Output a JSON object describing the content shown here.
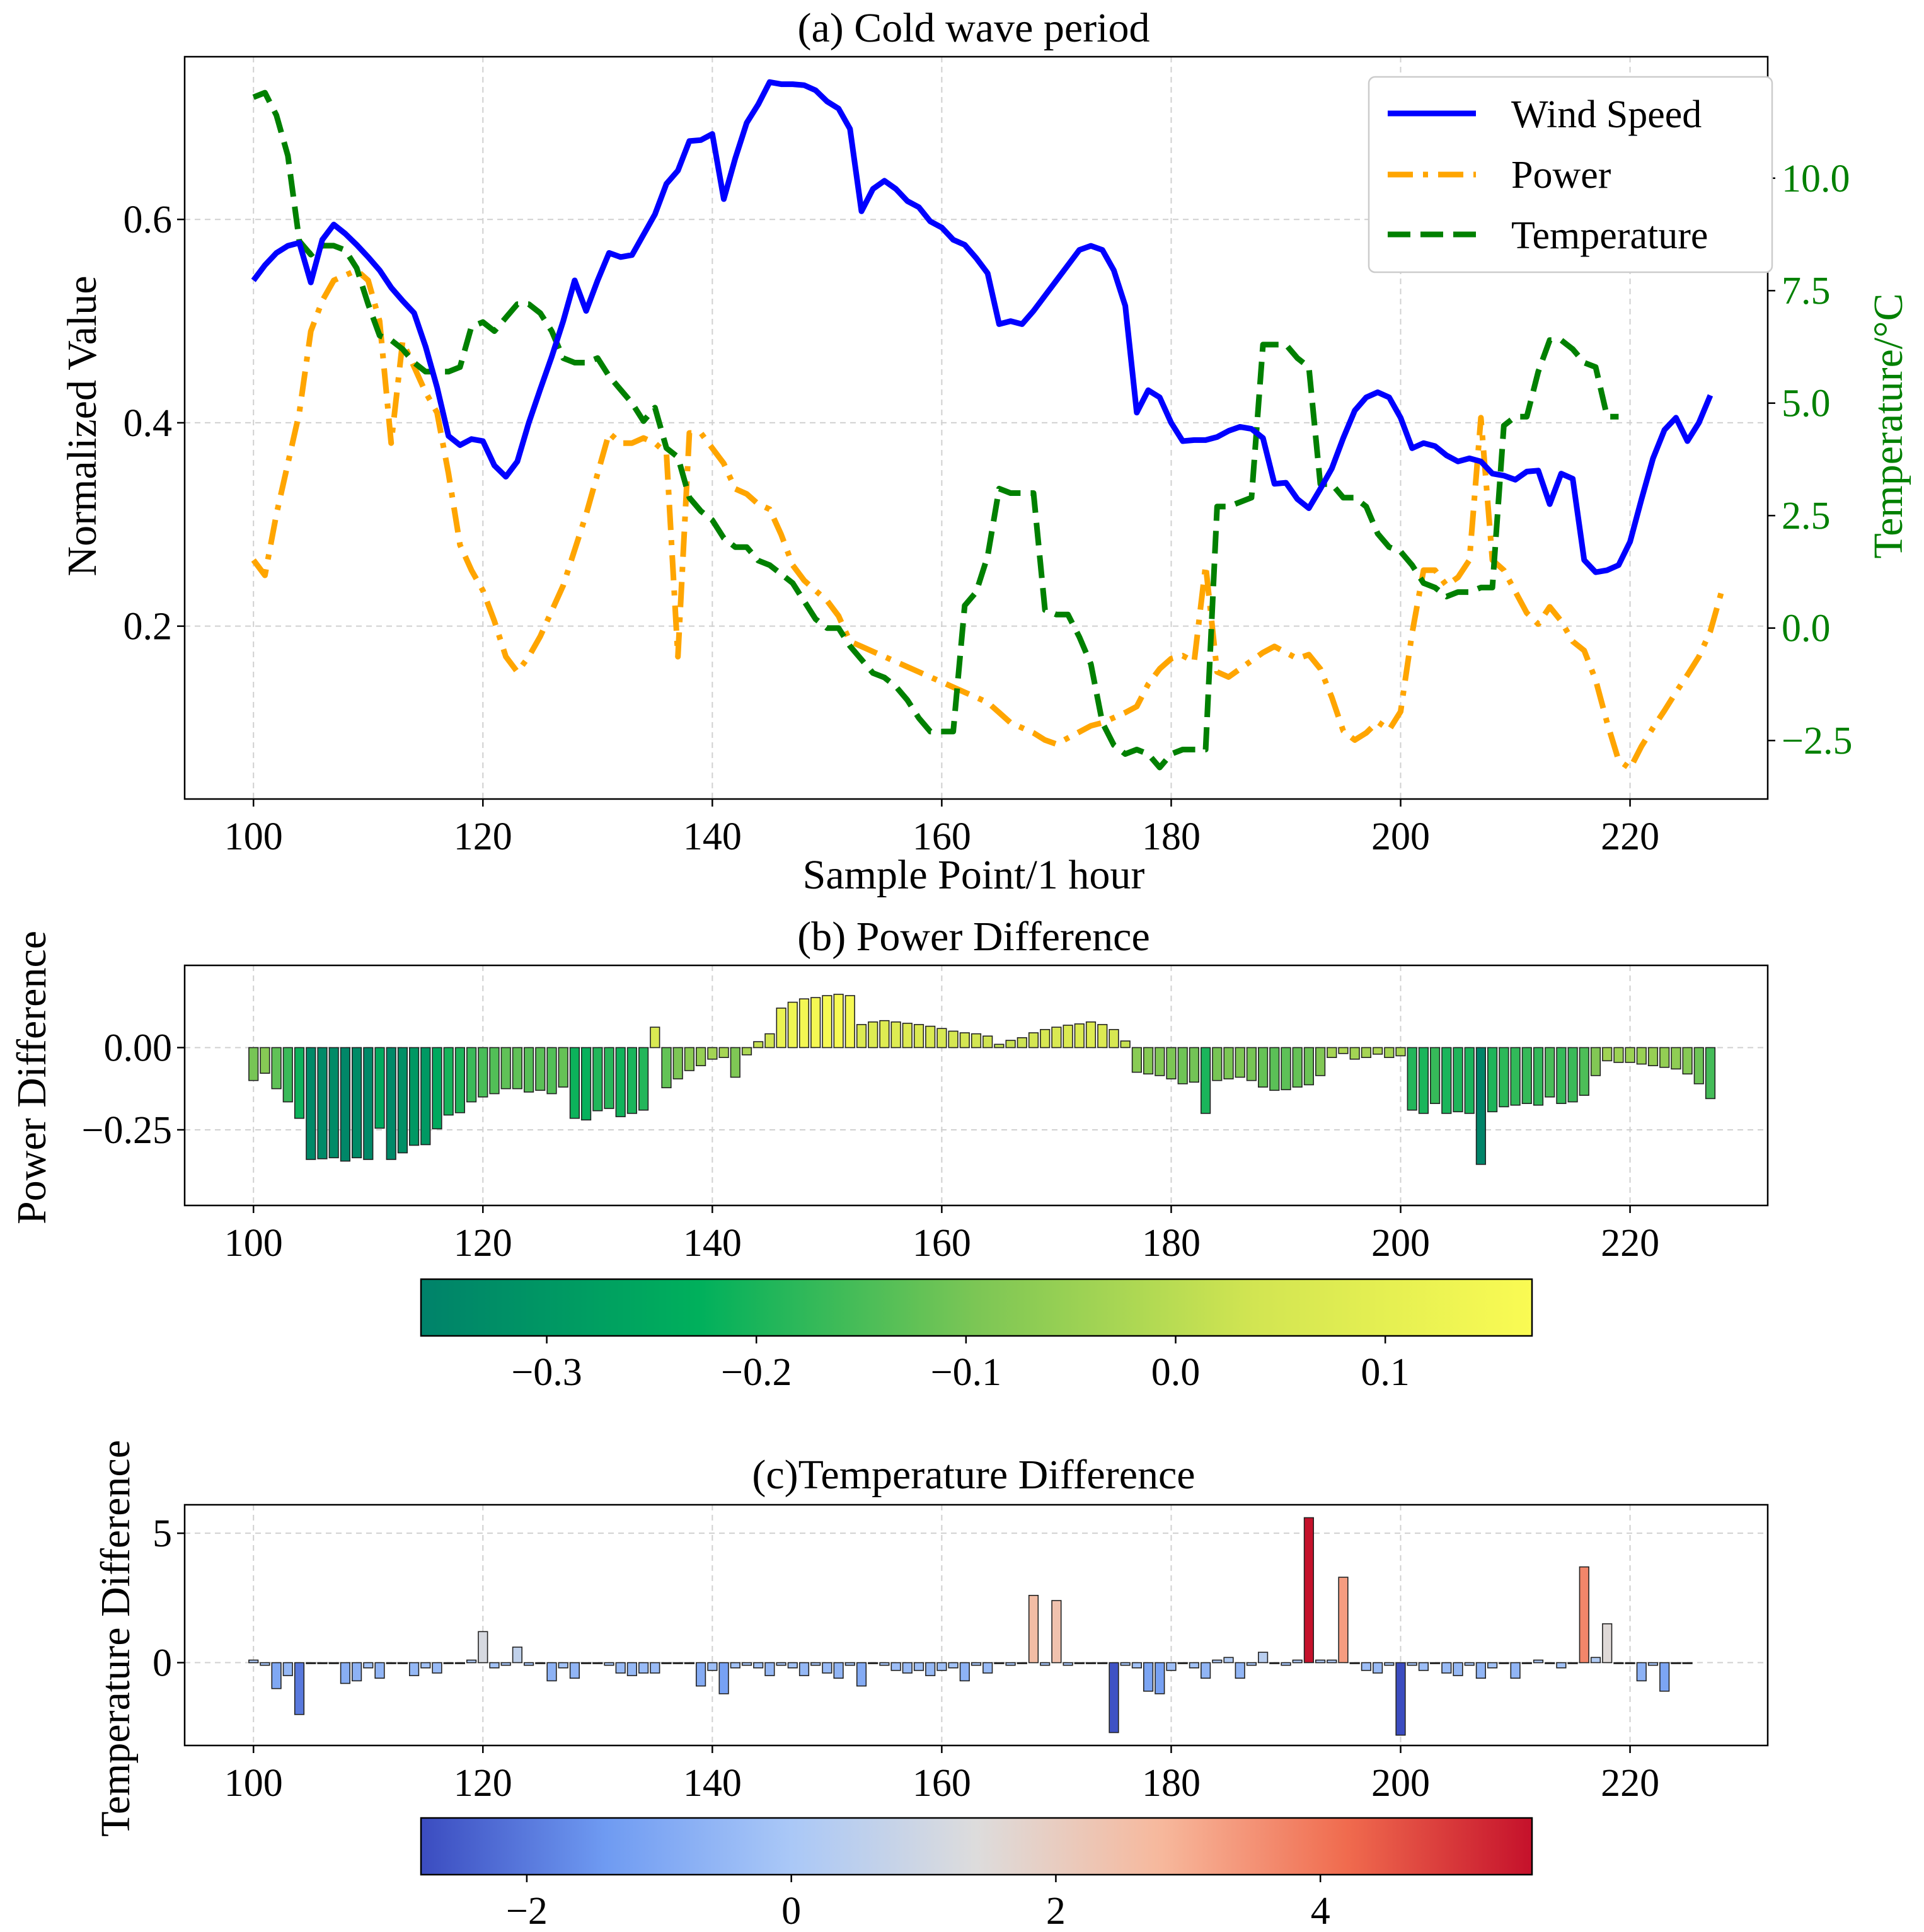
{
  "colors": {
    "wind": "#0000ff",
    "power": "#ffa500",
    "temperature": "#008000",
    "grid": "#d0d0d0",
    "power_cmap": [
      "#00826a",
      "#00b05c",
      "#7cc655",
      "#d2e552",
      "#fafb53"
    ],
    "temp_cmap": [
      "#3b4cc0",
      "#6f9bf2",
      "#aac8f7",
      "#dddcdc",
      "#f7b89c",
      "#f06b4e",
      "#c5112b"
    ]
  },
  "chart_data": [
    {
      "id": "a",
      "type": "line",
      "title": "(a) Cold wave period",
      "xlabel": "Sample Point/1 hour",
      "ylabel": "Normalized Value",
      "y2label": "Temperature/°C",
      "xlim": [
        94,
        232
      ],
      "ylim": [
        0.03,
        0.76
      ],
      "y2lim": [
        -3.8,
        12.7
      ],
      "xticks": [
        100,
        120,
        140,
        160,
        180,
        200,
        220
      ],
      "xtick_labels": [
        "100",
        "120",
        "140",
        "160",
        "180",
        "200",
        "220"
      ],
      "yticks": [
        0.2,
        0.4,
        0.6
      ],
      "ytick_labels": [
        "0.2",
        "0.4",
        "0.6"
      ],
      "y2ticks": [
        -2.5,
        0,
        2.5,
        5,
        7.5,
        10
      ],
      "y2tick_labels": [
        "−2.5",
        "0.0",
        "2.5",
        "5.0",
        "7.5",
        "10.0"
      ],
      "grid": true,
      "legend_position": "top-right",
      "x_start": 100,
      "series": [
        {
          "name": "Wind Speed",
          "axis": "left",
          "style": "solid",
          "values": [
            0.54,
            0.555,
            0.567,
            0.574,
            0.577,
            0.538,
            0.58,
            0.595,
            0.586,
            0.575,
            0.563,
            0.55,
            0.533,
            0.52,
            0.508,
            0.475,
            0.435,
            0.387,
            0.378,
            0.384,
            0.382,
            0.358,
            0.347,
            0.362,
            0.4,
            0.433,
            0.465,
            0.5,
            0.54,
            0.51,
            0.54,
            0.567,
            0.563,
            0.565,
            0.585,
            0.605,
            0.635,
            0.648,
            0.677,
            0.678,
            0.684,
            0.62,
            0.66,
            0.695,
            0.713,
            0.735,
            0.733,
            0.733,
            0.732,
            0.727,
            0.716,
            0.709,
            0.689,
            0.608,
            0.63,
            0.638,
            0.63,
            0.618,
            0.612,
            0.598,
            0.592,
            0.58,
            0.575,
            0.562,
            0.547,
            0.497,
            0.5,
            0.497,
            0.51,
            0.525,
            0.54,
            0.555,
            0.57,
            0.574,
            0.57,
            0.55,
            0.515,
            0.41,
            0.432,
            0.425,
            0.4,
            0.382,
            0.383,
            0.383,
            0.386,
            0.392,
            0.396,
            0.394,
            0.385,
            0.34,
            0.341,
            0.325,
            0.316,
            0.335,
            0.355,
            0.385,
            0.412,
            0.425,
            0.43,
            0.425,
            0.405,
            0.375,
            0.38,
            0.377,
            0.368,
            0.362,
            0.365,
            0.362,
            0.35,
            0.348,
            0.344,
            0.352,
            0.353,
            0.32,
            0.35,
            0.345,
            0.265,
            0.253,
            0.255,
            0.26,
            0.283,
            0.325,
            0.365,
            0.393,
            0.405,
            0.382,
            0.4,
            0.427
          ]
        },
        {
          "name": "Power",
          "axis": "left",
          "style": "dashdot",
          "values": [
            0.265,
            0.25,
            0.31,
            0.36,
            0.41,
            0.49,
            0.52,
            0.54,
            0.545,
            0.55,
            0.54,
            0.5,
            0.38,
            0.48,
            0.455,
            0.43,
            0.41,
            0.35,
            0.28,
            0.255,
            0.235,
            0.205,
            0.17,
            0.155,
            0.17,
            0.19,
            0.215,
            0.24,
            0.275,
            0.31,
            0.35,
            0.39,
            0.38,
            0.38,
            0.385,
            0.38,
            0.37,
            0.17,
            0.39,
            0.39,
            0.375,
            0.36,
            0.335,
            0.33,
            0.32,
            0.315,
            0.29,
            0.26,
            0.245,
            0.235,
            0.225,
            0.21,
            0.185,
            0.18,
            0.175,
            0.17,
            0.165,
            0.16,
            0.155,
            0.15,
            0.145,
            0.14,
            0.135,
            0.13,
            0.125,
            0.115,
            0.105,
            0.1,
            0.095,
            0.088,
            0.084,
            0.09,
            0.096,
            0.102,
            0.105,
            0.11,
            0.115,
            0.121,
            0.143,
            0.158,
            0.168,
            0.171,
            0.165,
            0.26,
            0.155,
            0.15,
            0.158,
            0.166,
            0.174,
            0.18,
            0.174,
            0.168,
            0.172,
            0.158,
            0.13,
            0.097,
            0.088,
            0.095,
            0.106,
            0.098,
            0.116,
            0.193,
            0.255,
            0.255,
            0.24,
            0.248,
            0.265,
            0.405,
            0.265,
            0.255,
            0.234,
            0.213,
            0.202,
            0.219,
            0.205,
            0.185,
            0.176,
            0.147,
            0.105,
            0.068,
            0.06,
            0.082,
            0.1,
            0.117,
            0.135,
            0.152,
            0.17,
            0.195,
            0.235
          ]
        },
        {
          "name": "Temperature",
          "axis": "right",
          "style": "dashed",
          "values": [
            11.8,
            11.9,
            11.4,
            10.5,
            8.6,
            8.3,
            8.5,
            8.5,
            8.4,
            8.0,
            7.2,
            6.5,
            6.4,
            6.2,
            5.9,
            5.7,
            5.7,
            5.7,
            5.8,
            6.7,
            6.8,
            6.6,
            6.9,
            7.2,
            7.2,
            7.0,
            6.6,
            6.0,
            5.9,
            5.9,
            6.0,
            5.6,
            5.3,
            5.0,
            4.6,
            4.9,
            4.0,
            3.8,
            2.9,
            2.6,
            2.4,
            2.0,
            1.8,
            1.8,
            1.5,
            1.4,
            1.2,
            1.0,
            0.6,
            0.2,
            0.0,
            0.0,
            -0.4,
            -0.7,
            -1.0,
            -1.1,
            -1.3,
            -1.6,
            -2.0,
            -2.3,
            -2.3,
            -2.3,
            0.5,
            0.8,
            1.6,
            3.1,
            3.0,
            3.0,
            3.0,
            0.4,
            0.3,
            0.3,
            -0.2,
            -0.8,
            -2.1,
            -2.6,
            -2.8,
            -2.7,
            -2.8,
            -3.1,
            -2.8,
            -2.7,
            -2.7,
            -2.7,
            2.7,
            2.7,
            2.8,
            2.9,
            6.3,
            6.3,
            6.3,
            6.0,
            5.8,
            3.2,
            3.2,
            2.9,
            2.9,
            2.7,
            2.1,
            1.8,
            1.7,
            1.4,
            1.0,
            0.9,
            0.7,
            0.8,
            0.8,
            0.9,
            0.9,
            4.5,
            4.7,
            4.7,
            5.7,
            6.4,
            6.4,
            6.2,
            5.9,
            5.8,
            4.7,
            4.7
          ]
        }
      ]
    },
    {
      "id": "b",
      "type": "bar",
      "title": "(b) Power Difference",
      "ylabel": "Power Difference",
      "xlim": [
        94,
        232
      ],
      "ylim": [
        -0.48,
        0.25
      ],
      "xticks": [
        100,
        120,
        140,
        160,
        180,
        200,
        220
      ],
      "xtick_labels": [
        "100",
        "120",
        "140",
        "160",
        "180",
        "200",
        "220"
      ],
      "yticks": [
        -0.25,
        0
      ],
      "ytick_labels": [
        "−0.25",
        "0.00"
      ],
      "grid": true,
      "x_start": 100,
      "values": [
        -0.1,
        -0.078,
        -0.125,
        -0.165,
        -0.215,
        -0.34,
        -0.338,
        -0.335,
        -0.345,
        -0.335,
        -0.34,
        -0.245,
        -0.34,
        -0.32,
        -0.297,
        -0.295,
        -0.247,
        -0.205,
        -0.198,
        -0.165,
        -0.15,
        -0.14,
        -0.125,
        -0.125,
        -0.135,
        -0.13,
        -0.14,
        -0.12,
        -0.215,
        -0.22,
        -0.192,
        -0.185,
        -0.21,
        -0.2,
        -0.19,
        0.062,
        -0.122,
        -0.095,
        -0.07,
        -0.055,
        -0.035,
        -0.03,
        -0.09,
        -0.022,
        0.018,
        0.042,
        0.12,
        0.138,
        0.148,
        0.152,
        0.158,
        0.162,
        0.158,
        0.07,
        0.078,
        0.082,
        0.078,
        0.074,
        0.07,
        0.065,
        0.058,
        0.05,
        0.045,
        0.042,
        0.035,
        0.01,
        0.022,
        0.03,
        0.045,
        0.055,
        0.062,
        0.068,
        0.072,
        0.078,
        0.07,
        0.055,
        0.02,
        -0.075,
        -0.08,
        -0.085,
        -0.095,
        -0.11,
        -0.105,
        -0.2,
        -0.1,
        -0.095,
        -0.09,
        -0.1,
        -0.12,
        -0.13,
        -0.128,
        -0.12,
        -0.113,
        -0.085,
        -0.03,
        -0.018,
        -0.035,
        -0.03,
        -0.02,
        -0.03,
        -0.025,
        -0.19,
        -0.2,
        -0.17,
        -0.2,
        -0.195,
        -0.2,
        -0.355,
        -0.195,
        -0.18,
        -0.175,
        -0.17,
        -0.175,
        -0.15,
        -0.17,
        -0.165,
        -0.145,
        -0.085,
        -0.04,
        -0.045,
        -0.045,
        -0.05,
        -0.055,
        -0.06,
        -0.065,
        -0.08,
        -0.11,
        -0.155
      ]
    },
    {
      "id": "b-colorbar",
      "type": "colorbar",
      "range": [
        -0.36,
        0.17
      ],
      "ticks": [
        -0.3,
        -0.2,
        -0.1,
        0.0,
        0.1
      ],
      "tick_labels": [
        "−0.3",
        "−0.2",
        "−0.1",
        "0.0",
        "0.1"
      ]
    },
    {
      "id": "c",
      "type": "bar",
      "title": "(c)Temperature Difference",
      "ylabel": "Temperature Difference",
      "xlim": [
        94,
        232
      ],
      "ylim": [
        -3.2,
        6.1
      ],
      "xticks": [
        100,
        120,
        140,
        160,
        180,
        200,
        220
      ],
      "xtick_labels": [
        "100",
        "120",
        "140",
        "160",
        "180",
        "200",
        "220"
      ],
      "yticks": [
        0,
        5
      ],
      "ytick_labels": [
        "0",
        "5"
      ],
      "grid": true,
      "x_start": 100,
      "values": [
        0.1,
        -0.1,
        -1.0,
        -0.5,
        -2.0,
        0.0,
        0.0,
        0.0,
        -0.8,
        -0.7,
        -0.2,
        -0.6,
        0.0,
        0.0,
        -0.5,
        -0.2,
        -0.4,
        0.0,
        0.0,
        0.1,
        1.2,
        -0.2,
        -0.1,
        0.6,
        -0.1,
        0.0,
        -0.7,
        -0.2,
        -0.6,
        0.0,
        0.0,
        -0.1,
        -0.4,
        -0.5,
        -0.4,
        -0.4,
        0.0,
        0.0,
        0.0,
        -0.9,
        -0.3,
        -1.2,
        -0.2,
        -0.1,
        -0.2,
        -0.5,
        -0.1,
        -0.2,
        -0.5,
        -0.1,
        -0.4,
        -0.6,
        -0.1,
        -0.9,
        0.0,
        -0.1,
        -0.3,
        -0.4,
        -0.3,
        -0.5,
        -0.3,
        -0.2,
        -0.7,
        -0.1,
        -0.4,
        0.0,
        -0.1,
        0.0,
        2.6,
        -0.1,
        2.4,
        -0.1,
        0.0,
        0.0,
        0.0,
        -2.7,
        -0.1,
        -0.2,
        -1.1,
        -1.2,
        -0.3,
        0.0,
        -0.2,
        -0.6,
        0.1,
        0.2,
        -0.6,
        -0.1,
        0.4,
        0.0,
        -0.1,
        0.1,
        5.6,
        0.1,
        0.1,
        3.3,
        0.0,
        -0.3,
        -0.4,
        -0.1,
        -2.8,
        -0.1,
        -0.3,
        0.0,
        -0.4,
        -0.5,
        -0.1,
        -0.6,
        -0.2,
        0.0,
        -0.6,
        0.0,
        0.1,
        0.0,
        -0.2,
        0.0,
        3.7,
        0.2,
        1.5,
        0.0,
        0.0,
        -0.7,
        -0.1,
        -1.1,
        0.0,
        0.0
      ]
    },
    {
      "id": "c-colorbar",
      "type": "colorbar",
      "range": [
        -2.8,
        5.6
      ],
      "ticks": [
        -2,
        0,
        2,
        4
      ],
      "tick_labels": [
        "−2",
        "0",
        "2",
        "4"
      ]
    }
  ]
}
